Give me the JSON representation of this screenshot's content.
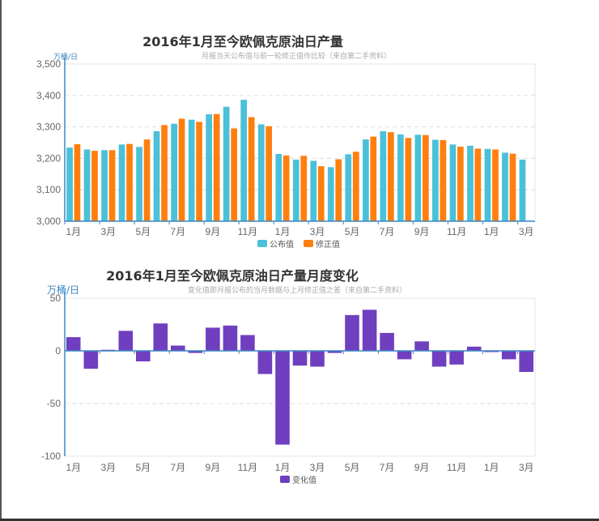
{
  "chart_data": [
    {
      "type": "bar",
      "title": "2016年1月至今欧佩克原油日产量",
      "subtitle": "月报当天公布值与前一轮修正值作比较（来自第二手资料）",
      "ylabel": "万桶/日",
      "xlabel": "",
      "ylim": [
        3000,
        3500
      ],
      "yticks": [
        3000,
        3100,
        3200,
        3300,
        3400,
        3500
      ],
      "ytick_labels": [
        "3,000",
        "3,100",
        "3,200",
        "3,300",
        "3,400",
        "3,500"
      ],
      "grid": true,
      "legend_position": "bottom",
      "x_tick_labels": [
        "1月",
        "3月",
        "5月",
        "7月",
        "9月",
        "11月",
        "1月",
        "3月",
        "5月",
        "7月",
        "9月",
        "11月",
        "1月",
        "3月"
      ],
      "categories": [
        "2016-01",
        "2016-02",
        "2016-03",
        "2016-04",
        "2016-05",
        "2016-06",
        "2016-07",
        "2016-08",
        "2016-09",
        "2016-10",
        "2016-11",
        "2016-12",
        "2017-01",
        "2017-02",
        "2017-03",
        "2017-04",
        "2017-05",
        "2017-06",
        "2017-07",
        "2017-08",
        "2017-09",
        "2017-10",
        "2017-11",
        "2017-12",
        "2018-01",
        "2018-02",
        "2018-03"
      ],
      "series": [
        {
          "name": "公布值",
          "color": "#4bc0d9",
          "values": [
            3234,
            3228,
            3226,
            3244,
            3236,
            3286,
            3310,
            3323,
            3340,
            3364,
            3386,
            3308,
            3214,
            3196,
            3192,
            3172,
            3213,
            3260,
            3286,
            3276,
            3275,
            3259,
            3244,
            3240,
            3230,
            3218,
            3196
          ]
        },
        {
          "name": "修正值",
          "color": "#ff7f0e",
          "values": [
            3245,
            3224,
            3226,
            3246,
            3260,
            3306,
            3326,
            3316,
            3341,
            3295,
            3331,
            3302,
            3209,
            3208,
            3175,
            3197,
            3221,
            3269,
            3283,
            3265,
            3274,
            3258,
            3237,
            3231,
            3228,
            3215,
            null
          ]
        }
      ]
    },
    {
      "type": "bar",
      "title": "2016年1月至今欧佩克原油日产量月度变化",
      "subtitle": "变化值即月报公布的当月数据与上月修正值之差（来自第二手资料）",
      "ylabel": "万桶/日",
      "xlabel": "",
      "ylim": [
        -100,
        50
      ],
      "yticks": [
        -100,
        -50,
        0,
        50
      ],
      "ytick_labels": [
        "-100",
        "-50",
        "0",
        "50"
      ],
      "grid": true,
      "legend_position": "bottom",
      "x_tick_labels": [
        "1月",
        "3月",
        "5月",
        "7月",
        "9月",
        "11月",
        "1月",
        "3月",
        "5月",
        "7月",
        "9月",
        "11月",
        "1月",
        "3月"
      ],
      "categories": [
        "2016-01",
        "2016-02",
        "2016-03",
        "2016-04",
        "2016-05",
        "2016-06",
        "2016-07",
        "2016-08",
        "2016-09",
        "2016-10",
        "2016-11",
        "2016-12",
        "2017-01",
        "2017-02",
        "2017-03",
        "2017-04",
        "2017-05",
        "2017-06",
        "2017-07",
        "2017-08",
        "2017-09",
        "2017-10",
        "2017-11",
        "2017-12",
        "2018-01",
        "2018-02",
        "2018-03"
      ],
      "series": [
        {
          "name": "变化值",
          "color": "#6f3fbf",
          "values": [
            13,
            -17,
            1,
            19,
            -10,
            26,
            5,
            -2,
            22,
            24,
            15,
            -22,
            -89,
            -14,
            -15,
            -2,
            34,
            39,
            17,
            -8,
            9,
            -15,
            -13,
            4,
            -1,
            -8,
            -20
          ]
        }
      ]
    }
  ]
}
